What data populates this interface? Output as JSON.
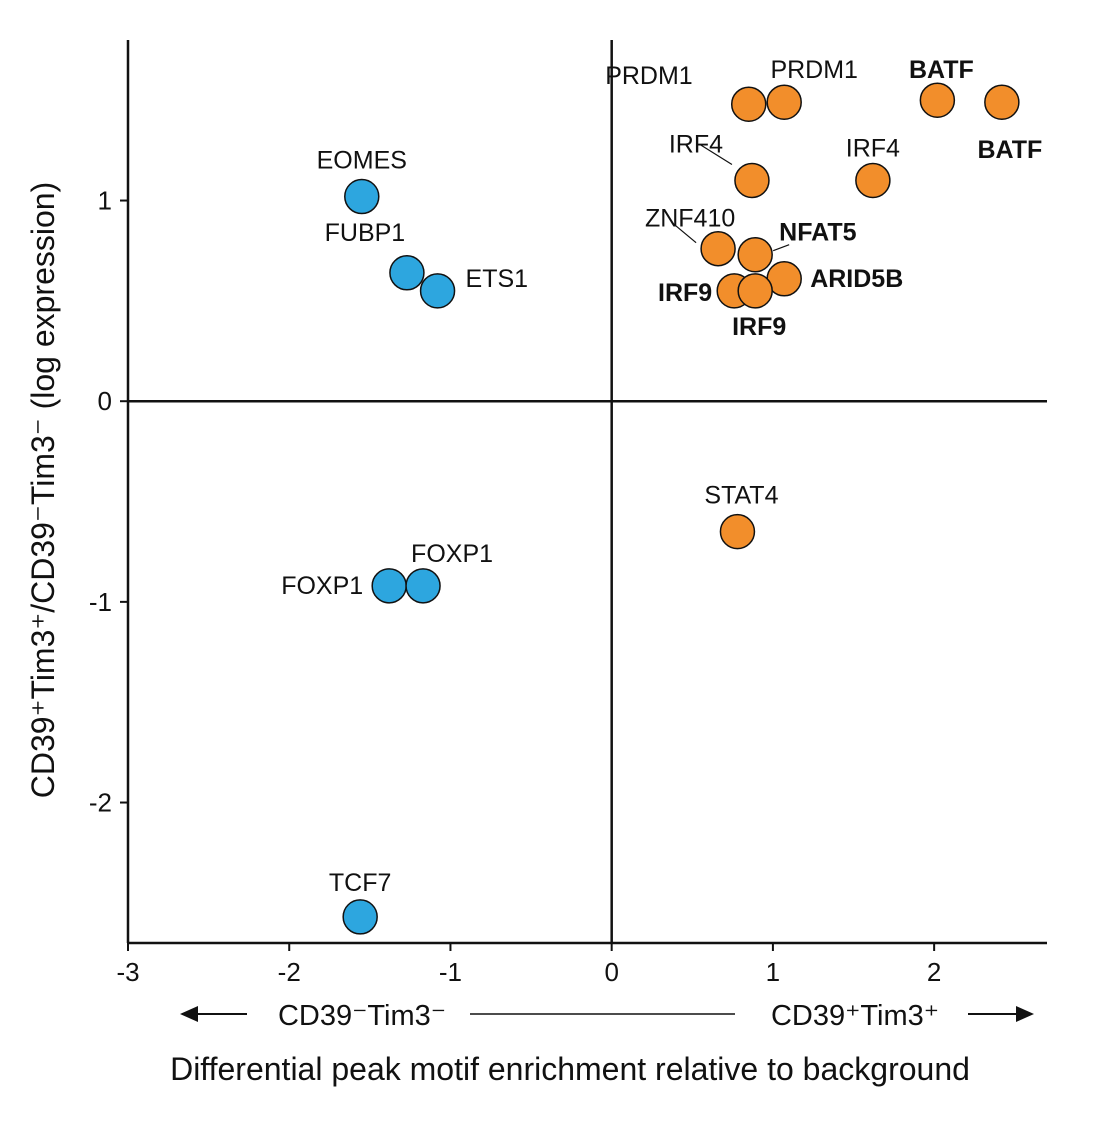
{
  "chart_data": {
    "type": "scatter",
    "title": "",
    "xlabel": "Differential peak motif enrichment relative to background",
    "ylabel": "CD39⁺Tim3⁺/CD39⁻Tim3⁻ (log expression)",
    "xlim": [
      -3,
      2.7
    ],
    "ylim": [
      -2.7,
      1.8
    ],
    "x_ticks": [
      -3,
      -2,
      -1,
      0,
      1,
      2
    ],
    "y_ticks": [
      -2,
      -1,
      0,
      1
    ],
    "x_tick_labels": [
      "-3",
      "-2",
      "-1",
      "0",
      "1",
      "2"
    ],
    "y_tick_labels": [
      "-2",
      "-1",
      "0",
      "1"
    ],
    "direction_left": "CD39⁻Tim3⁻",
    "direction_right": "CD39⁺Tim3⁺",
    "grid": false,
    "colors": {
      "negative": "#2DA6DF",
      "positive": "#F28E2B",
      "outline": "#111111"
    },
    "points": [
      {
        "label": "EOMES",
        "x": -1.55,
        "y": 1.02,
        "group": "negative"
      },
      {
        "label": "FUBP1",
        "x": -1.27,
        "y": 0.64,
        "group": "negative"
      },
      {
        "label": "ETS1",
        "x": -1.08,
        "y": 0.55,
        "group": "negative"
      },
      {
        "label": "FOXP1",
        "x": -1.38,
        "y": -0.92,
        "group": "negative"
      },
      {
        "label": "FOXP1",
        "x": -1.17,
        "y": -0.92,
        "group": "negative"
      },
      {
        "label": "TCF7",
        "x": -1.56,
        "y": -2.57,
        "group": "negative"
      },
      {
        "label": "PRDM1",
        "x": 0.85,
        "y": 1.48,
        "group": "positive"
      },
      {
        "label": "PRDM1",
        "x": 1.07,
        "y": 1.49,
        "group": "positive"
      },
      {
        "label": "BATF",
        "x": 2.02,
        "y": 1.5,
        "group": "positive"
      },
      {
        "label": "BATF",
        "x": 2.42,
        "y": 1.49,
        "group": "positive"
      },
      {
        "label": "IRF4",
        "x": 0.87,
        "y": 1.1,
        "group": "positive"
      },
      {
        "label": "IRF4",
        "x": 1.62,
        "y": 1.1,
        "group": "positive"
      },
      {
        "label": "ZNF410",
        "x": 0.66,
        "y": 0.76,
        "group": "positive"
      },
      {
        "label": "NFAT5",
        "x": 0.89,
        "y": 0.73,
        "group": "positive"
      },
      {
        "label": "ARID5B",
        "x": 1.07,
        "y": 0.61,
        "group": "positive"
      },
      {
        "label": "IRF9",
        "x": 0.76,
        "y": 0.55,
        "group": "positive"
      },
      {
        "label": "IRF9",
        "x": 0.89,
        "y": 0.55,
        "group": "positive"
      },
      {
        "label": "STAT4",
        "x": 0.78,
        "y": -0.65,
        "group": "positive"
      }
    ]
  }
}
